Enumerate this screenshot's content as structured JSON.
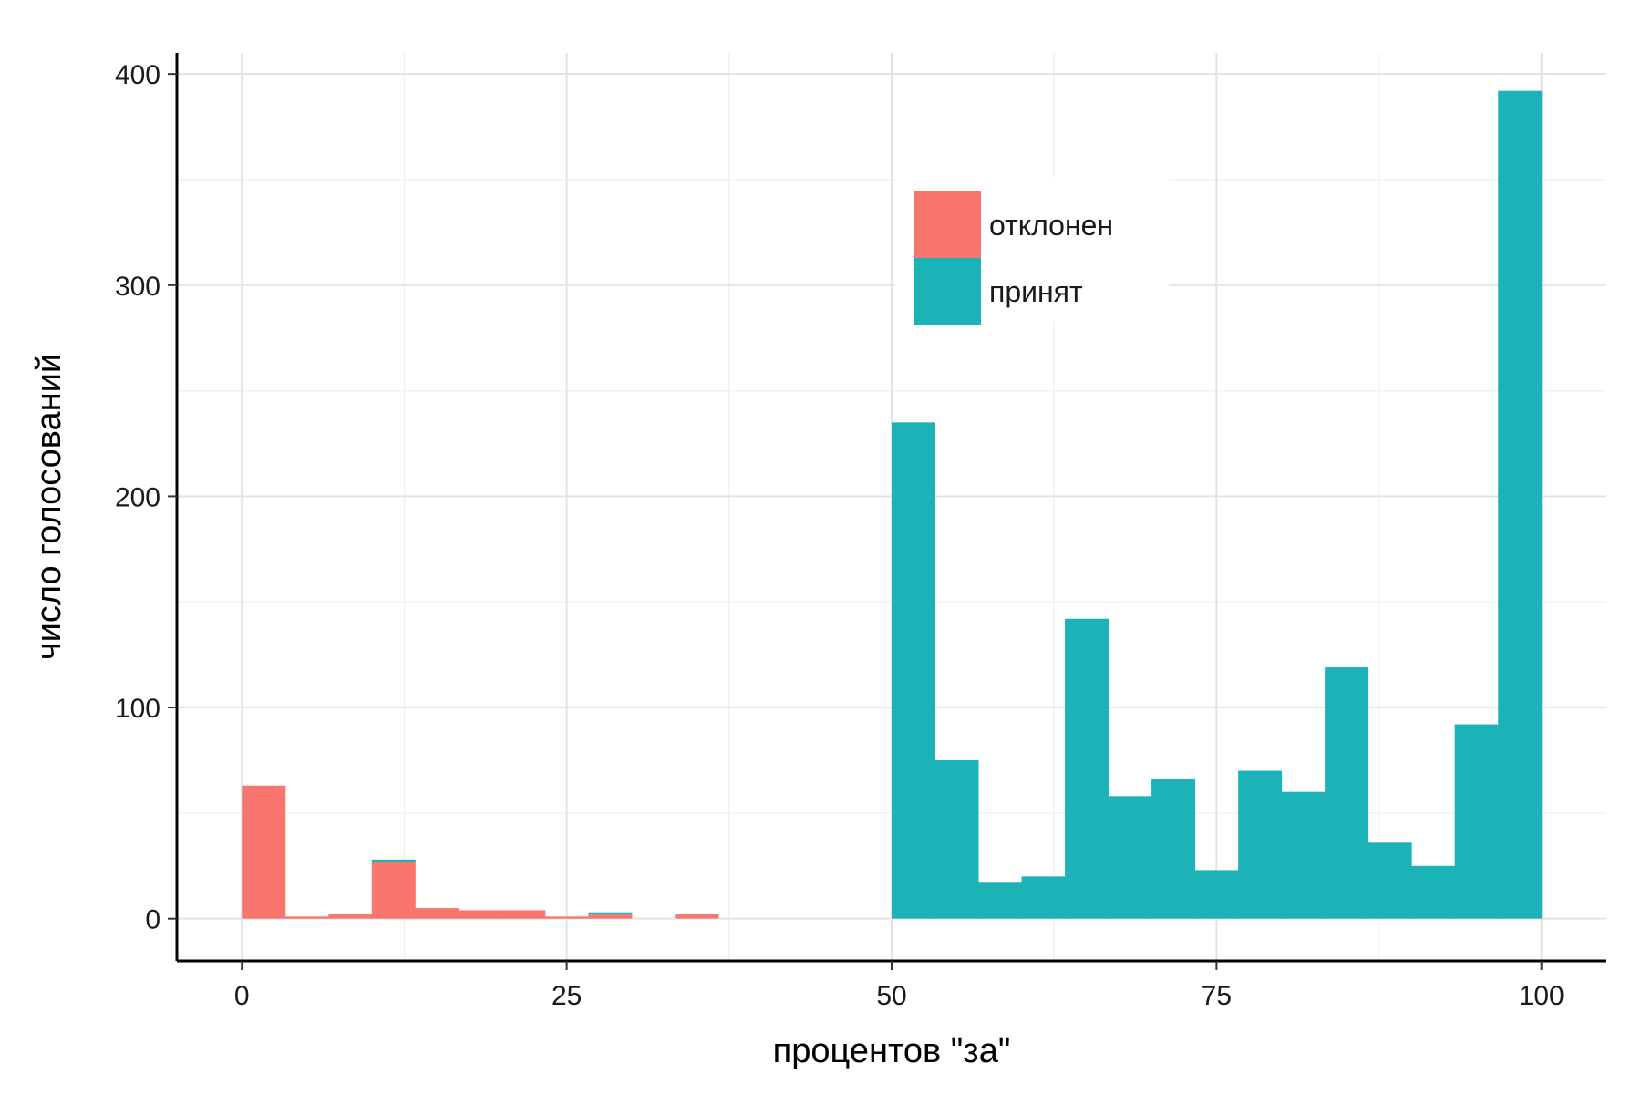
{
  "chart_data": {
    "type": "bar",
    "stacked": true,
    "xlabel": "процентов \"за\"",
    "ylabel": "число голосований",
    "xlim": [
      -5,
      105
    ],
    "ylim": [
      -20,
      410
    ],
    "x_ticks": [
      0,
      25,
      50,
      75,
      100
    ],
    "y_ticks": [
      0,
      100,
      200,
      300,
      400
    ],
    "x_minor_ticks": [
      12.5,
      37.5,
      62.5,
      87.5
    ],
    "y_minor_ticks": [
      50,
      150,
      250,
      350
    ],
    "grid": true,
    "bin_width": 3.333,
    "bin_starts": [
      0,
      3.333,
      6.667,
      10,
      13.333,
      16.667,
      20,
      23.333,
      26.667,
      30,
      33.333,
      36.667,
      40,
      43.333,
      46.667,
      50,
      53.333,
      56.667,
      60,
      63.333,
      66.667,
      70,
      73.333,
      76.667,
      80,
      83.333,
      86.667,
      90,
      93.333,
      96.667
    ],
    "series": [
      {
        "name": "отклонен",
        "color": "#F8766D",
        "values": [
          63,
          1,
          2,
          27,
          5,
          4,
          4,
          1,
          2,
          0,
          2,
          0,
          0,
          0,
          0,
          0,
          0,
          0,
          0,
          0,
          0,
          0,
          0,
          0,
          0,
          0,
          0,
          0,
          0,
          0
        ]
      },
      {
        "name": "принят",
        "color": "#1BB3B8",
        "values": [
          0,
          0,
          0,
          1,
          0,
          0,
          0,
          0,
          1,
          0,
          0,
          0,
          0,
          0,
          0,
          235,
          75,
          17,
          20,
          142,
          58,
          66,
          23,
          70,
          60,
          119,
          36,
          25,
          92,
          392
        ]
      }
    ],
    "legend": {
      "position": "inside-top-center",
      "entries": [
        "отклонен",
        "принят"
      ]
    }
  }
}
